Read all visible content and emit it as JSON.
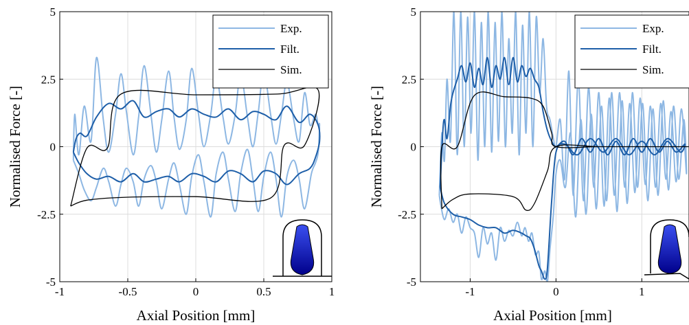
{
  "chart_data": [
    {
      "type": "line",
      "xlabel": "Axial Position [mm]",
      "ylabel": "Normalised Force [-]",
      "xlim": [
        -1,
        1
      ],
      "ylim": [
        -5,
        5
      ],
      "xticks": [
        -1,
        -0.5,
        0,
        0.5,
        1
      ],
      "yticks": [
        -5,
        -2.5,
        0,
        2.5,
        5
      ],
      "grid": true,
      "legend": "upper right",
      "series": [
        {
          "name": "Exp.",
          "color": "#8db7e3",
          "x": [
            -0.9,
            -0.89,
            -0.86,
            -0.82,
            -0.77,
            -0.73,
            -0.68,
            -0.64,
            -0.59,
            -0.55,
            -0.51,
            -0.46,
            -0.42,
            -0.38,
            -0.33,
            -0.29,
            -0.25,
            -0.2,
            -0.16,
            -0.12,
            -0.07,
            -0.03,
            0.02,
            0.06,
            0.11,
            0.15,
            0.2,
            0.24,
            0.29,
            0.33,
            0.38,
            0.42,
            0.46,
            0.5,
            0.55,
            0.59,
            0.63,
            0.67,
            0.72,
            0.76,
            0.8,
            0.84,
            0.88,
            0.9,
            0.91,
            0.9,
            0.88,
            0.85,
            0.8,
            0.76,
            0.72,
            0.67,
            0.63,
            0.59,
            0.55,
            0.5,
            0.46,
            0.42,
            0.38,
            0.33,
            0.29,
            0.24,
            0.2,
            0.15,
            0.11,
            0.06,
            0.02,
            -0.03,
            -0.07,
            -0.12,
            -0.16,
            -0.2,
            -0.25,
            -0.29,
            -0.33,
            -0.38,
            -0.42,
            -0.46,
            -0.51,
            -0.55,
            -0.59,
            -0.64,
            -0.68,
            -0.73,
            -0.77,
            -0.82,
            -0.86,
            -0.9
          ],
          "values": [
            -0.5,
            1.2,
            -0.3,
            1.5,
            0.2,
            3.3,
            1.0,
            -0.2,
            1.2,
            2.7,
            1.3,
            -0.3,
            1.1,
            3.0,
            1.2,
            -0.2,
            1.0,
            2.8,
            1.1,
            -0.1,
            1.0,
            2.9,
            1.2,
            0.0,
            1.2,
            2.6,
            1.1,
            0.1,
            1.2,
            2.7,
            1.1,
            0.0,
            1.3,
            2.8,
            1.2,
            0.1,
            1.2,
            2.4,
            1.0,
            0.2,
            2.0,
            0.8,
            1.2,
            0.8,
            0.8,
            -0.2,
            -0.6,
            -1.0,
            -2.3,
            -1.2,
            -0.5,
            -1.1,
            -2.6,
            -1.2,
            -0.2,
            -1.1,
            -2.4,
            -1.2,
            -0.1,
            -1.0,
            -2.4,
            -1.2,
            -0.2,
            -1.0,
            -2.6,
            -1.3,
            -0.3,
            -1.1,
            -2.5,
            -1.4,
            -0.6,
            -1.2,
            -2.3,
            -1.3,
            -0.7,
            -1.2,
            -2.2,
            -1.3,
            -0.8,
            -1.4,
            -2.2,
            -1.3,
            -0.8,
            -1.5,
            -2.0,
            -1.6,
            -1.0,
            -0.5
          ]
        },
        {
          "name": "Filt.",
          "color": "#1d5ea8",
          "x": [
            -0.9,
            -0.88,
            -0.85,
            -0.8,
            -0.73,
            -0.64,
            -0.55,
            -0.46,
            -0.38,
            -0.29,
            -0.2,
            -0.12,
            -0.03,
            0.06,
            0.15,
            0.24,
            0.33,
            0.42,
            0.5,
            0.59,
            0.67,
            0.76,
            0.84,
            0.9,
            0.91,
            0.88,
            0.84,
            0.76,
            0.67,
            0.59,
            0.5,
            0.42,
            0.33,
            0.24,
            0.15,
            0.06,
            -0.03,
            -0.12,
            -0.2,
            -0.29,
            -0.38,
            -0.46,
            -0.55,
            -0.64,
            -0.73,
            -0.8,
            -0.86,
            -0.9
          ],
          "values": [
            -0.2,
            0.3,
            0.5,
            0.4,
            1.1,
            1.6,
            1.4,
            1.7,
            1.1,
            1.3,
            1.4,
            1.1,
            1.4,
            1.2,
            1.1,
            1.4,
            1.0,
            1.3,
            1.2,
            1.0,
            1.5,
            0.9,
            1.2,
            0.8,
            0.2,
            -0.4,
            -0.8,
            -1.0,
            -1.4,
            -1.0,
            -0.9,
            -1.3,
            -1.0,
            -0.9,
            -1.3,
            -1.1,
            -1.0,
            -1.3,
            -1.1,
            -1.2,
            -1.3,
            -1.0,
            -1.3,
            -1.1,
            -1.2,
            -1.0,
            -0.6,
            -0.2
          ]
        },
        {
          "name": "Sim.",
          "color": "#000000",
          "x": [
            -0.92,
            -0.8,
            -0.65,
            -0.55,
            0,
            0.6,
            0.9,
            0.8,
            0.65,
            0.55,
            0,
            -0.5,
            -0.8,
            -0.92
          ],
          "values": [
            -2.2,
            -0.05,
            -0.05,
            1.95,
            1.92,
            1.95,
            2.1,
            0.05,
            0.05,
            -1.9,
            -1.85,
            -1.87,
            -1.98,
            -2.2
          ]
        }
      ]
    },
    {
      "type": "line",
      "xlabel": "Axial Position [mm]",
      "ylabel": "Normalised Force [-]",
      "xlim": [
        -1.58,
        1.55
      ],
      "ylim": [
        -5,
        5
      ],
      "xticks": [
        -1,
        0,
        1
      ],
      "yticks": [
        -5,
        -2.5,
        0,
        2.5,
        5
      ],
      "grid": true,
      "legend": "upper right",
      "series": [
        {
          "name": "Exp.",
          "color": "#8db7e3",
          "x": [
            -1.36,
            -1.33,
            -1.3,
            -1.27,
            -1.23,
            -1.19,
            -1.15,
            -1.11,
            -1.07,
            -1.03,
            -0.99,
            -0.95,
            -0.91,
            -0.87,
            -0.83,
            -0.79,
            -0.75,
            -0.71,
            -0.67,
            -0.63,
            -0.59,
            -0.55,
            -0.51,
            -0.47,
            -0.43,
            -0.39,
            -0.35,
            -0.31,
            -0.27,
            -0.23,
            -0.19,
            -0.15,
            -0.11,
            -0.07,
            -0.03,
            0.0,
            0.05,
            0.1,
            0.15,
            0.2,
            0.26,
            0.32,
            0.38,
            0.44,
            0.5,
            0.56,
            0.62,
            0.68,
            0.74,
            0.8,
            0.86,
            0.92,
            0.98,
            1.04,
            1.1,
            1.16,
            1.22,
            1.28,
            1.34,
            1.4,
            1.46,
            1.52,
            1.49,
            1.43,
            1.37,
            1.31,
            1.25,
            1.19,
            1.13,
            1.07,
            1.01,
            0.95,
            0.89,
            0.83,
            0.77,
            0.71,
            0.65,
            0.59,
            0.53,
            0.47,
            0.41,
            0.35,
            0.29,
            0.23,
            0.17,
            0.11,
            0.05,
            0.0,
            -0.03,
            -0.07,
            -0.1,
            -0.13,
            -0.17,
            -0.2,
            -0.24,
            -0.28,
            -0.32,
            -0.36,
            -0.4,
            -0.45,
            -0.5,
            -0.55,
            -0.6,
            -0.65,
            -0.7,
            -0.75,
            -0.8,
            -0.85,
            -0.9,
            -0.95,
            -1.0,
            -1.05,
            -1.1,
            -1.15,
            -1.2,
            -1.25,
            -1.3,
            -1.34,
            -1.36
          ],
          "values": [
            -1.8,
            0.5,
            -0.5,
            2.5,
            0.2,
            5.0,
            -0.3,
            5.0,
            0.0,
            4.8,
            0.5,
            5.0,
            -0.5,
            4.6,
            0.0,
            5.0,
            -0.2,
            4.6,
            0.2,
            5.0,
            0.0,
            4.0,
            0.5,
            5.0,
            -0.3,
            4.5,
            0.5,
            5.0,
            0.0,
            4.8,
            2.0,
            4.0,
            1.5,
            1.0,
            0.3,
            0.0,
            1.0,
            -1.2,
            2.8,
            -1.8,
            2.5,
            -2.0,
            2.2,
            -1.5,
            2.0,
            -2.2,
            1.8,
            -1.8,
            2.0,
            -1.5,
            1.6,
            -1.7,
            1.8,
            -1.4,
            1.5,
            -1.5,
            1.6,
            -1.2,
            1.3,
            -1.3,
            1.4,
            -1.0,
            1.0,
            -1.2,
            1.5,
            -1.6,
            1.7,
            -1.8,
            1.4,
            -2.0,
            1.6,
            -1.5,
            2.0,
            -2.1,
            1.7,
            -2.4,
            2.0,
            -2.0,
            1.5,
            -2.3,
            1.2,
            -2.5,
            1.0,
            -2.6,
            0.5,
            -1.5,
            -0.5,
            -1.0,
            -2.5,
            -3.8,
            -5.0,
            -4.6,
            -4.9,
            -3.9,
            -4.0,
            -3.2,
            -3.5,
            -3.0,
            -3.3,
            -2.8,
            -3.3,
            -3.1,
            -3.5,
            -3.0,
            -4.2,
            -3.2,
            -3.6,
            -3.0,
            -4.1,
            -3.2,
            -3.0,
            -2.6,
            -3.2,
            -2.5,
            -2.8,
            -2.3,
            -2.7,
            -2.2,
            -1.8
          ]
        },
        {
          "name": "Filt.",
          "color": "#1d5ea8",
          "x": [
            -1.35,
            -1.32,
            -1.3,
            -1.27,
            -1.23,
            -1.2,
            -1.15,
            -1.1,
            -1.05,
            -1.0,
            -0.95,
            -0.9,
            -0.85,
            -0.8,
            -0.75,
            -0.7,
            -0.65,
            -0.6,
            -0.55,
            -0.5,
            -0.45,
            -0.4,
            -0.35,
            -0.3,
            -0.25,
            -0.2,
            -0.15,
            -0.1,
            -0.05,
            0.0,
            0.1,
            0.2,
            0.3,
            0.4,
            0.5,
            0.6,
            0.7,
            0.8,
            0.9,
            1.0,
            1.1,
            1.2,
            1.3,
            1.4,
            1.5,
            1.45,
            1.3,
            1.15,
            1.0,
            0.85,
            0.7,
            0.55,
            0.4,
            0.25,
            0.1,
            0.0,
            -0.05,
            -0.1,
            -0.13,
            -0.17,
            -0.2,
            -0.25,
            -0.3,
            -0.35,
            -0.4,
            -0.5,
            -0.6,
            -0.7,
            -0.8,
            -0.9,
            -1.0,
            -1.1,
            -1.2,
            -1.3,
            -1.35
          ],
          "values": [
            -1.5,
            0.5,
            1.0,
            0.3,
            1.5,
            2.0,
            2.5,
            3.0,
            2.4,
            3.1,
            2.2,
            2.9,
            2.3,
            3.3,
            2.2,
            3.0,
            2.5,
            3.3,
            2.3,
            3.3,
            2.4,
            3.0,
            2.6,
            2.9,
            2.5,
            2.2,
            1.3,
            0.6,
            0.2,
            0.0,
            0.2,
            -0.3,
            0.3,
            -0.2,
            0.3,
            -0.3,
            0.2,
            -0.3,
            0.3,
            -0.2,
            0.3,
            -0.2,
            0.2,
            -0.2,
            0.1,
            -0.2,
            0.3,
            -0.3,
            0.2,
            -0.3,
            0.3,
            -0.2,
            0.3,
            -0.3,
            0.1,
            -0.2,
            -2.0,
            -4.5,
            -4.9,
            -4.6,
            -4.4,
            -3.8,
            -3.4,
            -3.3,
            -3.2,
            -3.1,
            -3.2,
            -3.0,
            -3.0,
            -2.9,
            -2.7,
            -2.6,
            -2.5,
            -2.1,
            -1.5
          ]
        },
        {
          "name": "Sim.",
          "color": "#000000",
          "x": [
            -1.33,
            -1.33,
            -1.15,
            -0.95,
            -0.6,
            -0.3,
            -0.15,
            -0.05,
            0.0,
            0.5,
            1.0,
            1.54,
            1.0,
            0.5,
            0.0,
            -0.1,
            -0.25,
            -0.35,
            -0.5,
            -1.0,
            -1.2,
            -1.33
          ],
          "values": [
            -2.3,
            0.0,
            0.0,
            1.9,
            1.85,
            1.8,
            1.5,
            0.5,
            0.0,
            0.0,
            0.0,
            0.0,
            0.0,
            0.0,
            0.0,
            -0.9,
            -2.1,
            -2.35,
            -1.85,
            -1.75,
            -1.95,
            -2.3
          ]
        }
      ]
    }
  ]
}
